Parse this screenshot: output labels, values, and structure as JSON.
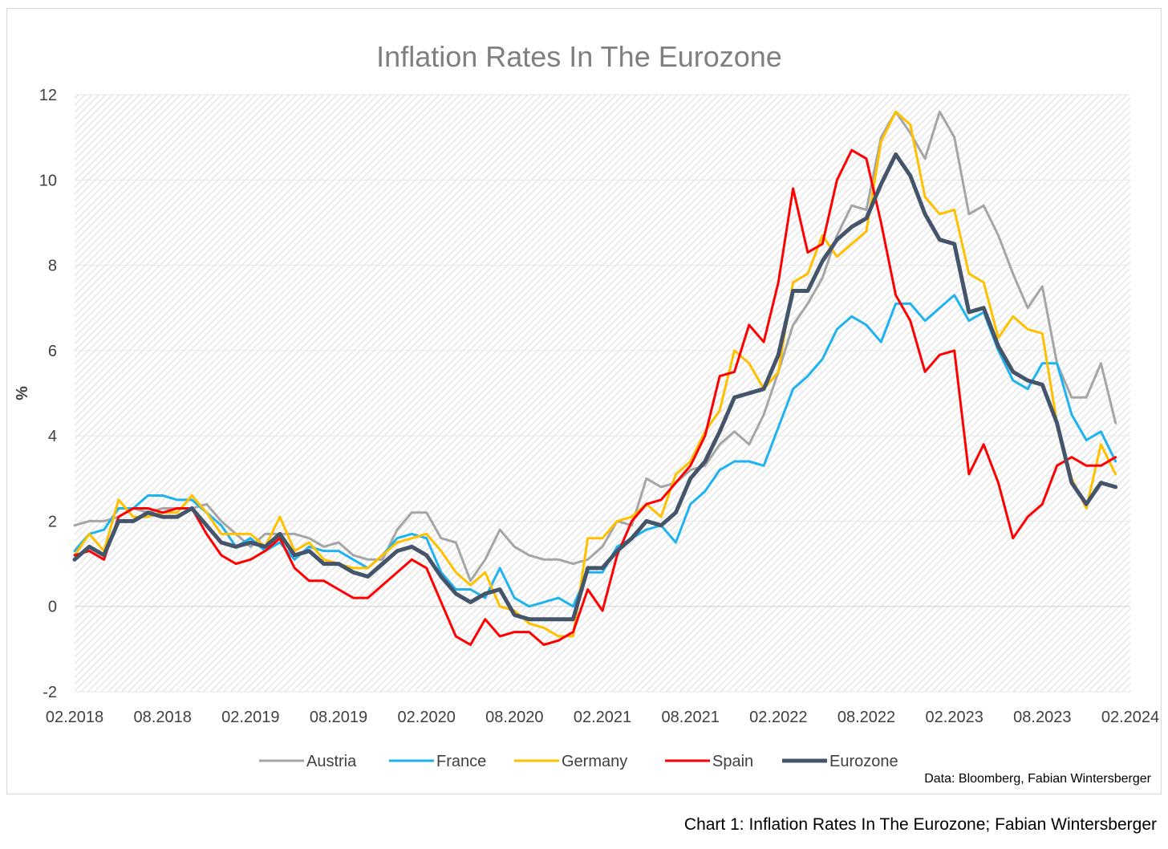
{
  "caption": "Chart 1: Inflation Rates In The Eurozone; Fabian Wintersberger",
  "source": "Data: Bloomberg, Fabian Wintersberger",
  "chart_data": {
    "type": "line",
    "title": "Inflation Rates In The Eurozone",
    "ylabel": "%",
    "xlabel": "",
    "ylim": [
      -2,
      12
    ],
    "yticks": [
      -2,
      0,
      2,
      4,
      6,
      8,
      10,
      12
    ],
    "x_start": "02.2018",
    "x_end": "02.2024",
    "x_tick_labels": [
      "02.2018",
      "08.2018",
      "02.2019",
      "08.2019",
      "02.2020",
      "08.2020",
      "02.2021",
      "08.2021",
      "02.2022",
      "08.2022",
      "02.2023",
      "08.2023",
      "02.2024"
    ],
    "grid": true,
    "legend_position": "bottom",
    "x": [
      "02.2018",
      "03.2018",
      "04.2018",
      "05.2018",
      "06.2018",
      "07.2018",
      "08.2018",
      "09.2018",
      "10.2018",
      "11.2018",
      "12.2018",
      "01.2019",
      "02.2019",
      "03.2019",
      "04.2019",
      "05.2019",
      "06.2019",
      "07.2019",
      "08.2019",
      "09.2019",
      "10.2019",
      "11.2019",
      "12.2019",
      "01.2020",
      "02.2020",
      "03.2020",
      "04.2020",
      "05.2020",
      "06.2020",
      "07.2020",
      "08.2020",
      "09.2020",
      "10.2020",
      "11.2020",
      "12.2020",
      "01.2021",
      "02.2021",
      "03.2021",
      "04.2021",
      "05.2021",
      "06.2021",
      "07.2021",
      "08.2021",
      "09.2021",
      "10.2021",
      "11.2021",
      "12.2021",
      "01.2022",
      "02.2022",
      "03.2022",
      "04.2022",
      "05.2022",
      "06.2022",
      "07.2022",
      "08.2022",
      "09.2022",
      "10.2022",
      "11.2022",
      "12.2022",
      "01.2023",
      "02.2023",
      "03.2023",
      "04.2023",
      "05.2023",
      "06.2023",
      "07.2023",
      "08.2023",
      "09.2023",
      "10.2023",
      "11.2023",
      "12.2023",
      "01.2024"
    ],
    "series": [
      {
        "name": "Austria",
        "color": "#a5a5a5",
        "width": 3,
        "values": [
          1.9,
          2.0,
          2.0,
          2.1,
          2.3,
          2.2,
          2.3,
          2.3,
          2.3,
          2.4,
          2.0,
          1.7,
          1.4,
          1.7,
          1.7,
          1.7,
          1.6,
          1.4,
          1.5,
          1.2,
          1.1,
          1.1,
          1.8,
          2.2,
          2.2,
          1.6,
          1.5,
          0.6,
          1.1,
          1.8,
          1.4,
          1.2,
          1.1,
          1.1,
          1.0,
          1.1,
          1.4,
          2.0,
          1.9,
          3.0,
          2.8,
          2.9,
          3.2,
          3.3,
          3.8,
          4.1,
          3.8,
          4.5,
          5.5,
          6.6,
          7.1,
          7.7,
          8.7,
          9.4,
          9.3,
          11.0,
          11.6,
          11.1,
          10.5,
          11.6,
          11.0,
          9.2,
          9.4,
          8.7,
          7.8,
          7.0,
          7.5,
          5.7,
          4.9,
          4.9,
          5.7,
          4.3
        ]
      },
      {
        "name": "France",
        "color": "#1eb3ef",
        "width": 3,
        "values": [
          1.3,
          1.7,
          1.8,
          2.3,
          2.3,
          2.6,
          2.6,
          2.5,
          2.5,
          2.2,
          1.9,
          1.4,
          1.6,
          1.3,
          1.5,
          1.1,
          1.4,
          1.3,
          1.3,
          1.1,
          0.9,
          1.2,
          1.6,
          1.7,
          1.6,
          0.8,
          0.4,
          0.4,
          0.2,
          0.9,
          0.2,
          0.0,
          0.1,
          0.2,
          0.0,
          0.8,
          0.8,
          1.4,
          1.6,
          1.8,
          1.9,
          1.5,
          2.4,
          2.7,
          3.2,
          3.4,
          3.4,
          3.3,
          4.2,
          5.1,
          5.4,
          5.8,
          6.5,
          6.8,
          6.6,
          6.2,
          7.1,
          7.1,
          6.7,
          7.0,
          7.3,
          6.7,
          6.9,
          6.0,
          5.3,
          5.1,
          5.7,
          5.7,
          4.5,
          3.9,
          4.1,
          3.4
        ]
      },
      {
        "name": "Germany",
        "color": "#ffc000",
        "width": 3,
        "values": [
          1.2,
          1.7,
          1.3,
          2.5,
          2.1,
          2.1,
          2.2,
          2.2,
          2.6,
          2.2,
          1.7,
          1.7,
          1.7,
          1.4,
          2.1,
          1.3,
          1.5,
          1.1,
          1.0,
          0.9,
          0.9,
          1.2,
          1.5,
          1.6,
          1.7,
          1.3,
          0.8,
          0.5,
          0.8,
          0.0,
          -0.1,
          -0.4,
          -0.5,
          -0.7,
          -0.7,
          1.6,
          1.6,
          2.0,
          2.1,
          2.4,
          2.1,
          3.1,
          3.4,
          4.1,
          4.6,
          6.0,
          5.7,
          5.1,
          5.5,
          7.6,
          7.8,
          8.7,
          8.2,
          8.5,
          8.8,
          10.9,
          11.6,
          11.3,
          9.6,
          9.2,
          9.3,
          7.8,
          7.6,
          6.3,
          6.8,
          6.5,
          6.4,
          4.3,
          3.0,
          2.3,
          3.8,
          3.1
        ]
      },
      {
        "name": "Spain",
        "color": "#ff0000",
        "width": 3,
        "values": [
          1.2,
          1.3,
          1.1,
          2.1,
          2.3,
          2.3,
          2.2,
          2.3,
          2.3,
          1.7,
          1.2,
          1.0,
          1.1,
          1.3,
          1.6,
          0.9,
          0.6,
          0.6,
          0.4,
          0.2,
          0.2,
          0.5,
          0.8,
          1.1,
          0.9,
          0.1,
          -0.7,
          -0.9,
          -0.3,
          -0.7,
          -0.6,
          -0.6,
          -0.9,
          -0.8,
          -0.6,
          0.4,
          -0.1,
          1.2,
          2.0,
          2.4,
          2.5,
          2.9,
          3.3,
          4.0,
          5.4,
          5.5,
          6.6,
          6.2,
          7.6,
          9.8,
          8.3,
          8.5,
          10.0,
          10.7,
          10.5,
          9.0,
          7.3,
          6.7,
          5.5,
          5.9,
          6.0,
          3.1,
          3.8,
          2.9,
          1.6,
          2.1,
          2.4,
          3.3,
          3.5,
          3.3,
          3.3,
          3.5
        ]
      },
      {
        "name": "Eurozone",
        "color": "#44546a",
        "width": 5,
        "values": [
          1.1,
          1.4,
          1.2,
          2.0,
          2.0,
          2.2,
          2.1,
          2.1,
          2.3,
          1.9,
          1.5,
          1.4,
          1.5,
          1.4,
          1.7,
          1.2,
          1.3,
          1.0,
          1.0,
          0.8,
          0.7,
          1.0,
          1.3,
          1.4,
          1.2,
          0.7,
          0.3,
          0.1,
          0.3,
          0.4,
          -0.2,
          -0.3,
          -0.3,
          -0.3,
          -0.3,
          0.9,
          0.9,
          1.3,
          1.6,
          2.0,
          1.9,
          2.2,
          3.0,
          3.4,
          4.1,
          4.9,
          5.0,
          5.1,
          5.9,
          7.4,
          7.4,
          8.1,
          8.6,
          8.9,
          9.1,
          9.9,
          10.6,
          10.1,
          9.2,
          8.6,
          8.5,
          6.9,
          7.0,
          6.1,
          5.5,
          5.3,
          5.2,
          4.3,
          2.9,
          2.4,
          2.9,
          2.8
        ]
      }
    ]
  }
}
